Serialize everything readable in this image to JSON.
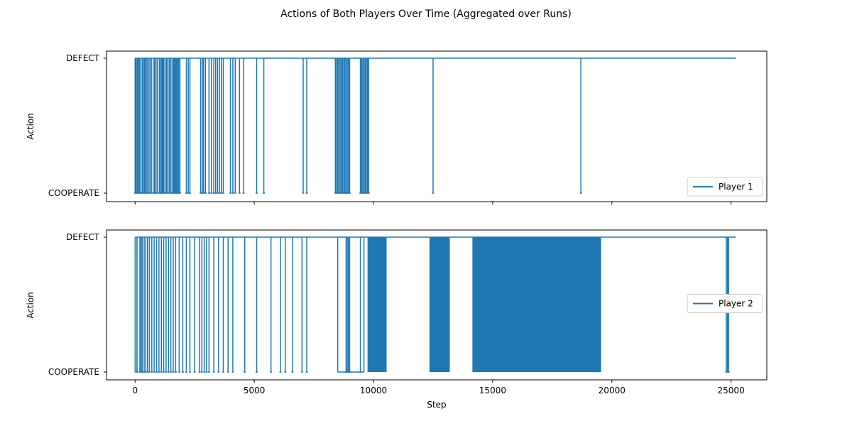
{
  "chart_data": {
    "type": "line",
    "title": "Actions of Both Players Over Time (Aggregated over Runs)",
    "series_color": "#1f77b4",
    "xlabel": "Step",
    "xlim": [
      -1200,
      26500
    ],
    "xticks": [
      0,
      5000,
      10000,
      15000,
      20000,
      25000
    ],
    "x_end": 25200,
    "y_categories": [
      "COOPERATE",
      "DEFECT"
    ],
    "panels": [
      {
        "ylabel": "Action",
        "legend": "Player 1",
        "legend_loc": "lower right",
        "show_xtick_labels": false,
        "initial_state": "DEFECT",
        "dense_blocks": [],
        "spikes": [
          0,
          40,
          90,
          130,
          180,
          240,
          300,
          350,
          400,
          450,
          500,
          560,
          620,
          680,
          760,
          820,
          880,
          940,
          1020,
          1080,
          1120,
          1160,
          1200,
          1260,
          1320,
          1380,
          1440,
          1500,
          1560,
          1620,
          1660,
          1700,
          1740,
          1780,
          1830,
          1880,
          2150,
          2230,
          2300,
          2750,
          2820,
          2870,
          2950,
          3100,
          3200,
          3300,
          3380,
          3460,
          3540,
          3620,
          3700,
          4000,
          4100,
          4200,
          4380,
          4550,
          5100,
          5400,
          7050,
          7200,
          8400,
          8450,
          8500,
          8550,
          8600,
          8650,
          8700,
          8750,
          8800,
          8850,
          8900,
          8950,
          9000,
          9450,
          9500,
          9550,
          9600,
          9650,
          9700,
          9750,
          9800,
          12500,
          18700
        ]
      },
      {
        "ylabel": "Action",
        "legend": "Player 2",
        "legend_loc": "center right",
        "show_xtick_labels": true,
        "initial_state": "COOPERATE",
        "dense_blocks": [
          [
            9750,
            10550
          ],
          [
            12350,
            13200
          ],
          [
            14150,
            19550
          ]
        ],
        "low_segments": [
          [
            0,
            80
          ],
          [
            8500,
            9600
          ]
        ],
        "spikes": [
          80,
          200,
          250,
          300,
          380,
          450,
          520,
          600,
          700,
          800,
          900,
          1000,
          1100,
          1200,
          1300,
          1400,
          1500,
          1600,
          1700,
          1850,
          2000,
          2150,
          2300,
          2500,
          2700,
          2800,
          2900,
          3000,
          3100,
          3300,
          3500,
          3700,
          3900,
          4100,
          4600,
          5100,
          5700,
          6100,
          6300,
          6600,
          7000,
          7200,
          8850,
          8900,
          8950,
          9000,
          9450,
          24800,
          24850,
          24900
        ]
      }
    ]
  }
}
